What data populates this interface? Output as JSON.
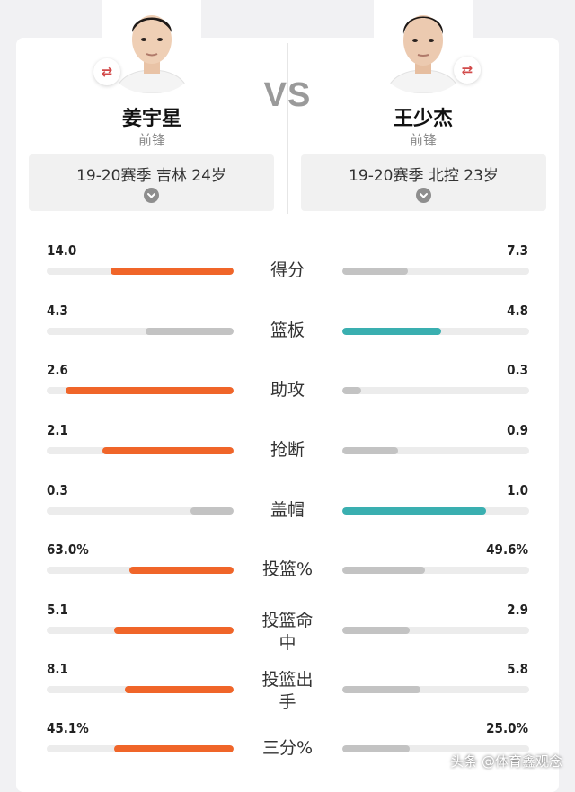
{
  "vs_label": "VS",
  "players": {
    "left": {
      "name": "姜宇星",
      "position": "前锋",
      "season": "19-20赛季  吉林 24岁"
    },
    "right": {
      "name": "王少杰",
      "position": "前锋",
      "season": "19-20赛季  北控 23岁"
    }
  },
  "stats": [
    {
      "label": "得分",
      "left": "14.0",
      "right": "7.3",
      "left_frac": 0.66,
      "right_frac": 0.35,
      "left_color": "#f06529",
      "right_color": "#c3c3c3"
    },
    {
      "label": "篮板",
      "left": "4.3",
      "right": "4.8",
      "left_frac": 0.47,
      "right_frac": 0.53,
      "left_color": "#c3c3c3",
      "right_color": "#3aafb0"
    },
    {
      "label": "助攻",
      "left": "2.6",
      "right": "0.3",
      "left_frac": 0.9,
      "right_frac": 0.1,
      "left_color": "#f06529",
      "right_color": "#c3c3c3"
    },
    {
      "label": "抢断",
      "left": "2.1",
      "right": "0.9",
      "left_frac": 0.7,
      "right_frac": 0.3,
      "left_color": "#f06529",
      "right_color": "#c3c3c3"
    },
    {
      "label": "盖帽",
      "left": "0.3",
      "right": "1.0",
      "left_frac": 0.23,
      "right_frac": 0.77,
      "left_color": "#c3c3c3",
      "right_color": "#3aafb0"
    },
    {
      "label": "投篮%",
      "left": "63.0%",
      "right": "49.6%",
      "left_frac": 0.56,
      "right_frac": 0.44,
      "left_color": "#f06529",
      "right_color": "#c3c3c3"
    },
    {
      "label": "投篮命中",
      "left": "5.1",
      "right": "2.9",
      "left_frac": 0.64,
      "right_frac": 0.36,
      "left_color": "#f06529",
      "right_color": "#c3c3c3"
    },
    {
      "label": "投篮出手",
      "left": "8.1",
      "right": "5.8",
      "left_frac": 0.58,
      "right_frac": 0.42,
      "left_color": "#f06529",
      "right_color": "#c3c3c3"
    },
    {
      "label": "三分%",
      "left": "45.1%",
      "right": "25.0%",
      "left_frac": 0.64,
      "right_frac": 0.36,
      "left_color": "#f06529",
      "right_color": "#c3c3c3"
    }
  ],
  "watermark": "头条 @体育鑫观念"
}
